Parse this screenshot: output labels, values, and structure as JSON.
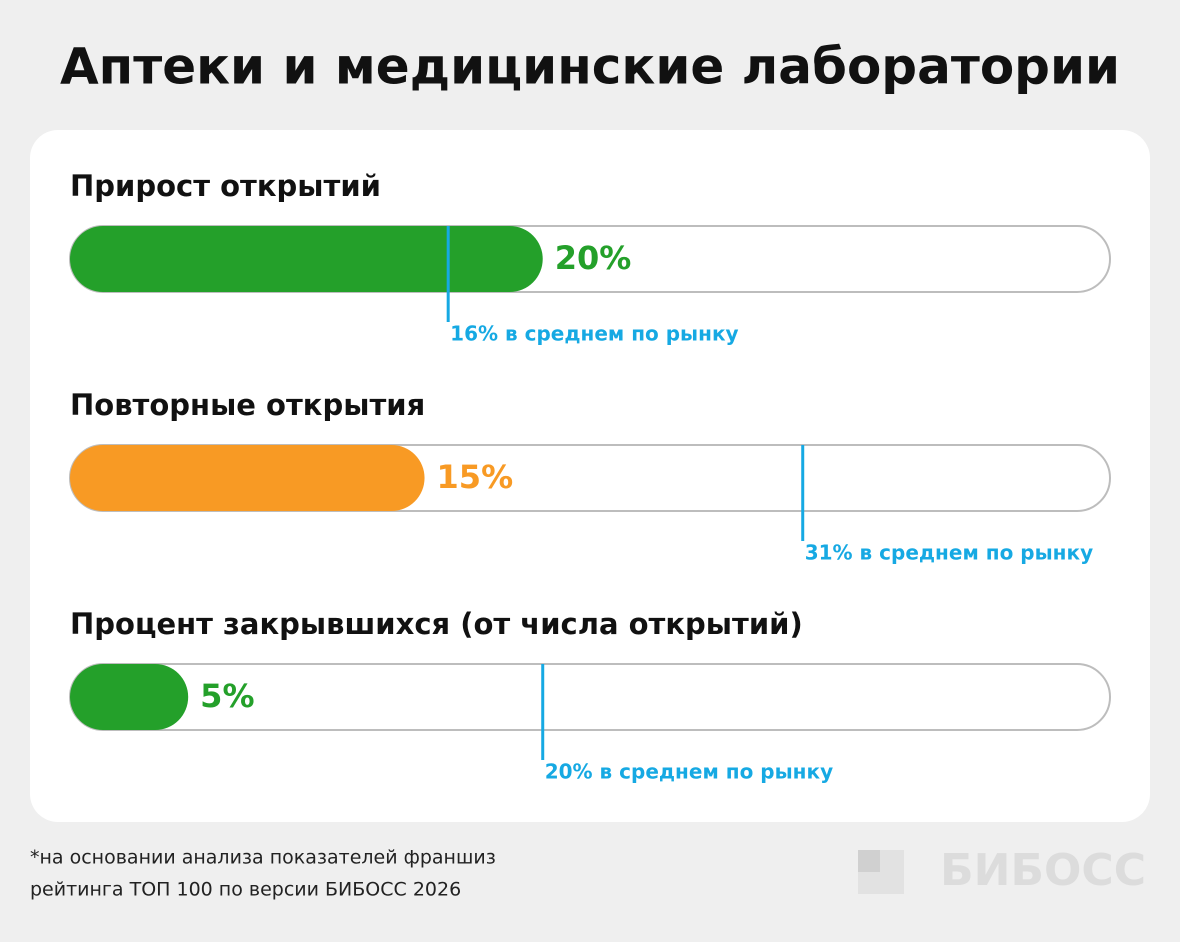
{
  "title": "Аптеки и медицинские лаборатории",
  "chart_data": [
    {
      "type": "bar",
      "title": "Прирост открытий",
      "values": [
        20
      ],
      "value_labels": [
        "20%"
      ],
      "color": "#24a02a",
      "benchmark": 16,
      "benchmark_label": "16% в среднем по рынку",
      "benchmark_color": "#16a9e3",
      "xlim": [
        0,
        44
      ]
    },
    {
      "type": "bar",
      "title": "Повторные открытия",
      "values": [
        15
      ],
      "value_labels": [
        "15%"
      ],
      "color": "#f89a24",
      "benchmark": 31,
      "benchmark_label": "31% в среднем по рынку",
      "benchmark_color": "#16a9e3",
      "xlim": [
        0,
        44
      ]
    },
    {
      "type": "bar",
      "title": "Процент закрывшихся (от числа открытий)",
      "values": [
        5
      ],
      "value_labels": [
        "5%"
      ],
      "color": "#24a02a",
      "benchmark": 20,
      "benchmark_label": "20% в среднем по рынку",
      "benchmark_color": "#16a9e3",
      "xlim": [
        0,
        44
      ]
    }
  ],
  "footnote": [
    "*на основании анализа показателей франшиз",
    "рейтинга ТОП 100 по версии БИБОСС 2026"
  ],
  "logo": "БИБОСС"
}
